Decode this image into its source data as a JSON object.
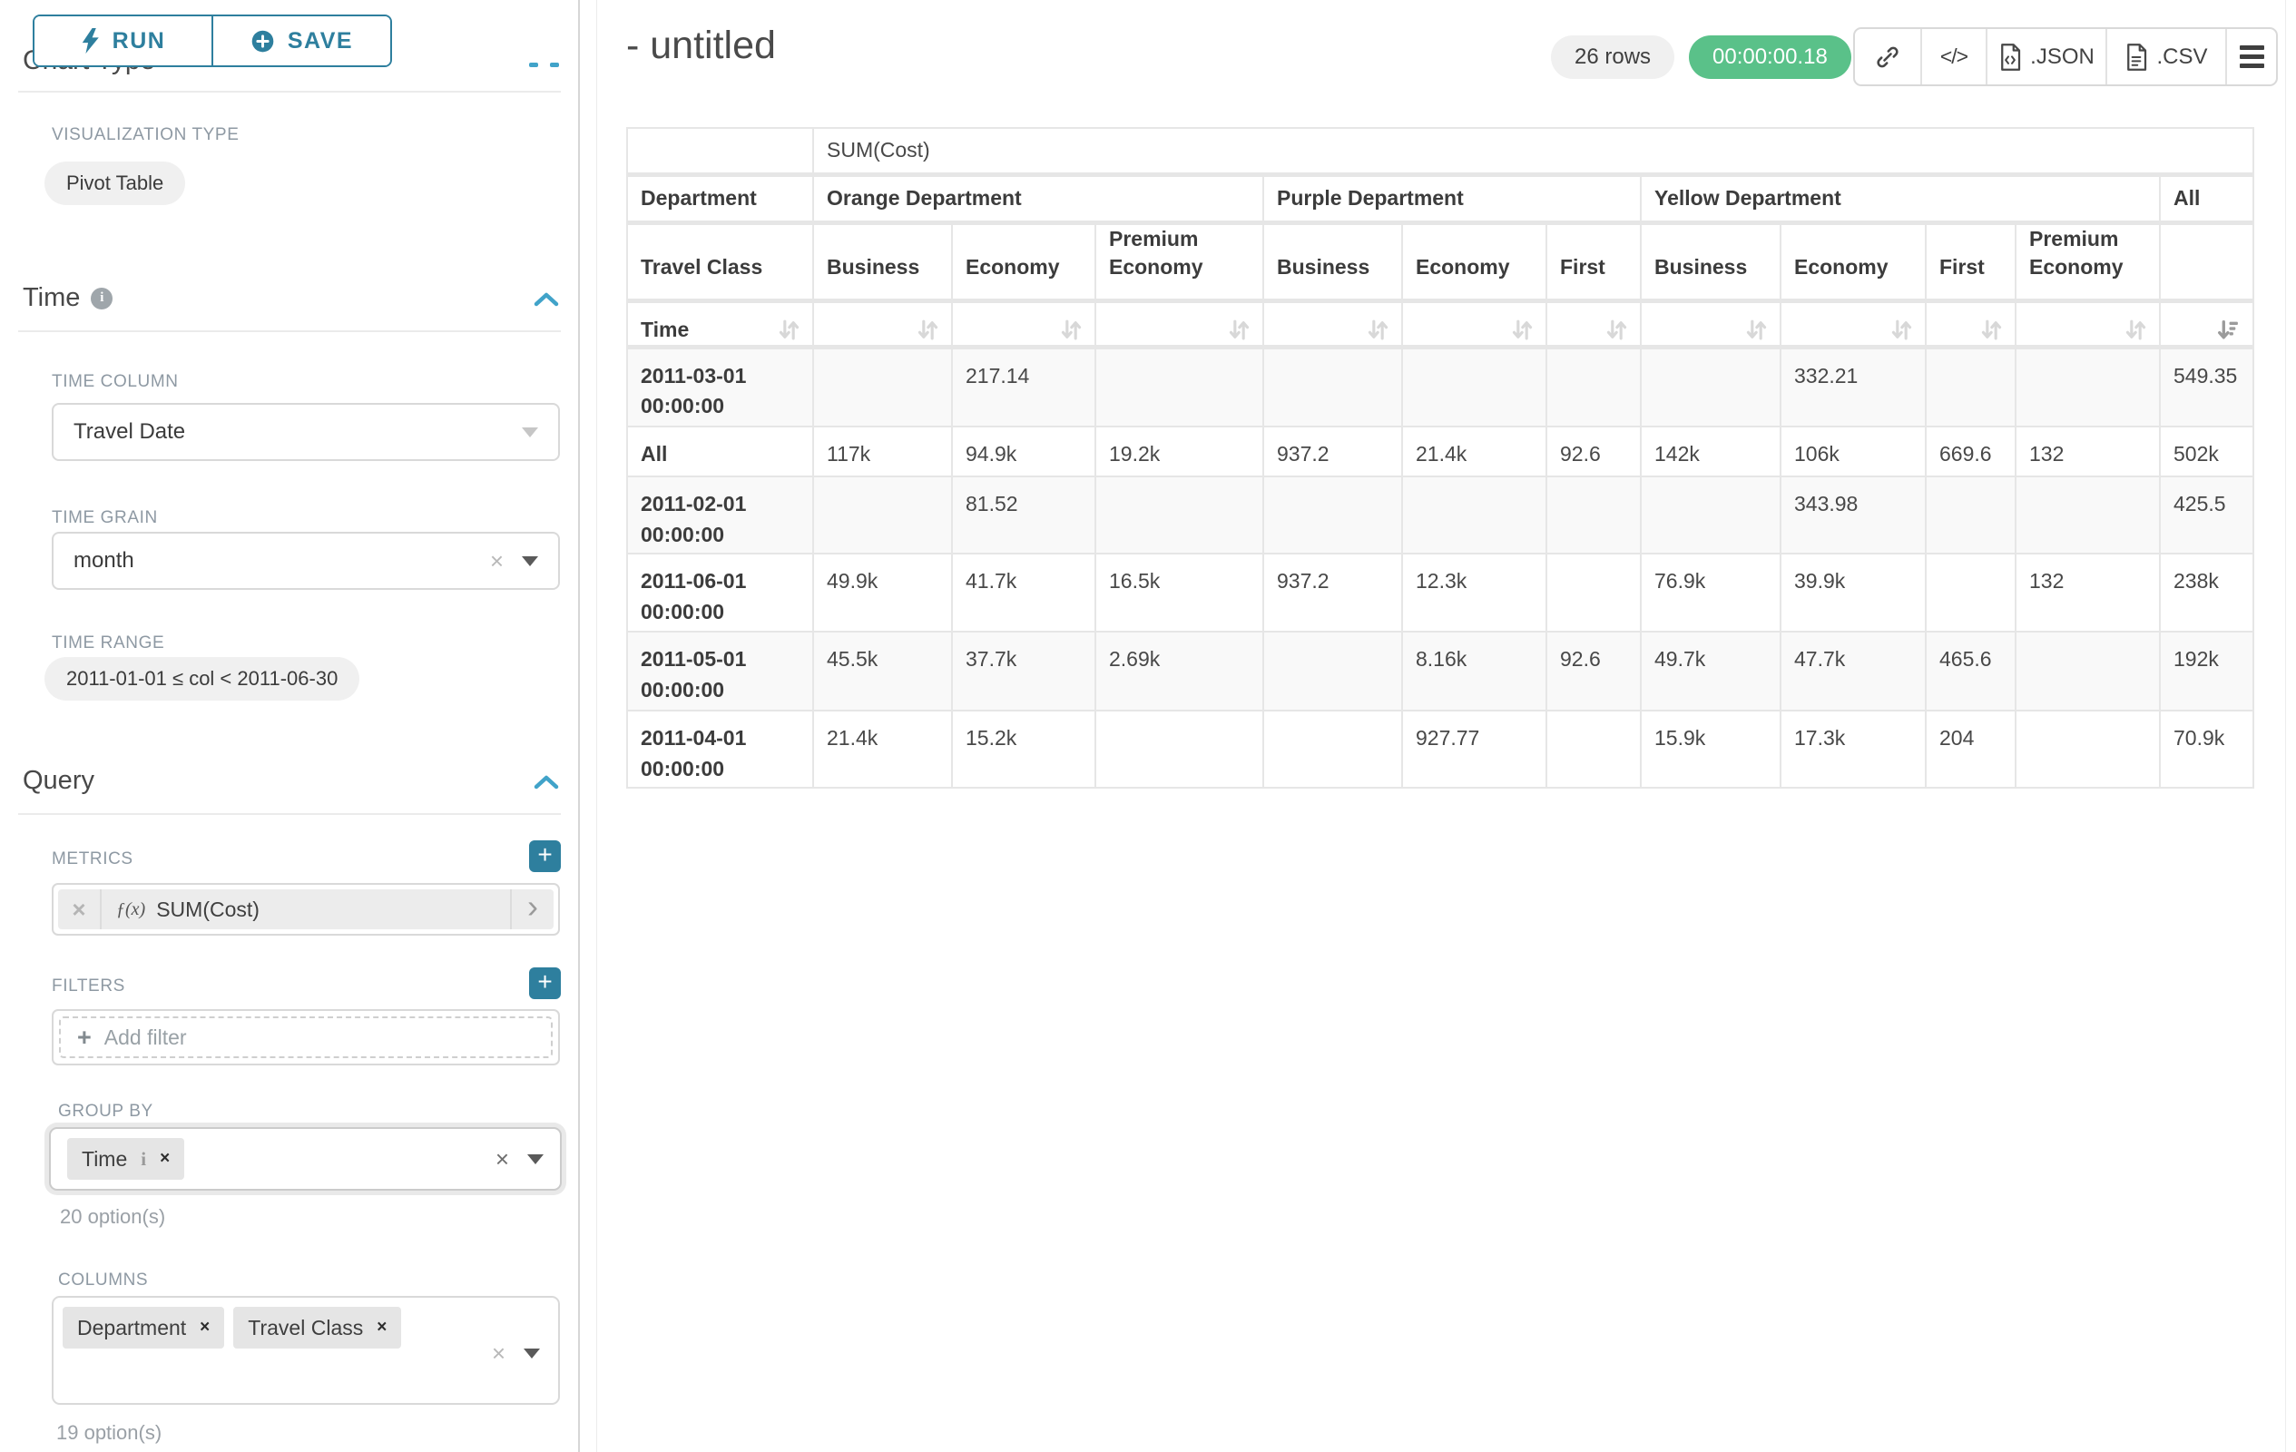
{
  "icons": {
    "close": "×",
    "plus": "+",
    "chevron_right": "›",
    "info": "i",
    "code": "</>"
  },
  "colors": {
    "primary": "#2E7F9E",
    "accent": "#41A3C9",
    "success": "#5AC189",
    "pill_bg": "#f0f0f0",
    "label_gray": "#8E99A3",
    "table_border": "#e6e6e6"
  },
  "sidebar": {
    "run_label": "RUN",
    "save_label": "SAVE",
    "chart_type_heading": "Chart Type",
    "viz_type_label": "VISUALIZATION TYPE",
    "viz_type_value": "Pivot Table",
    "time_section": "Time",
    "time_column_label": "TIME COLUMN",
    "time_column_value": "Travel Date",
    "time_grain_label": "TIME GRAIN",
    "time_grain_value": "month",
    "time_range_label": "TIME RANGE",
    "time_range_value": "2011-01-01 ≤ col < 2011-06-30",
    "query_section": "Query",
    "metrics_label": "METRICS",
    "metric_fx": "ƒ(x)",
    "metric_value": "SUM(Cost)",
    "filters_label": "FILTERS",
    "add_filter_placeholder": "Add filter",
    "group_by_label": "GROUP BY",
    "group_by_values": [
      "Time"
    ],
    "group_by_options_hint": "20 option(s)",
    "columns_label": "COLUMNS",
    "columns_values": [
      "Department",
      "Travel Class"
    ],
    "columns_options_hint": "19 option(s)"
  },
  "header": {
    "title": "- untitled",
    "row_count_badge": "26 rows",
    "timer_badge": "00:00:00.18",
    "json_label": ".JSON",
    "csv_label": ".CSV"
  },
  "pivot": {
    "metric_header": "SUM(Cost)",
    "row_group_label": "Department",
    "row_subgroup_label": "Travel Class",
    "sort_row_label": "Time",
    "column_groups": [
      {
        "label": "Orange Department",
        "columns": [
          "Business",
          "Economy",
          "Premium Economy"
        ]
      },
      {
        "label": "Purple Department",
        "columns": [
          "Business",
          "Economy",
          "First"
        ]
      },
      {
        "label": "Yellow Department",
        "columns": [
          "Business",
          "Economy",
          "First",
          "Premium Economy"
        ]
      },
      {
        "label": "All",
        "columns": [
          ""
        ]
      }
    ],
    "rows": [
      {
        "label": "2011-03-01 00:00:00",
        "values": [
          "",
          "217.14",
          "",
          "",
          "",
          "",
          "",
          "332.21",
          "",
          "",
          "549.35"
        ]
      },
      {
        "label": "All",
        "values": [
          "117k",
          "94.9k",
          "19.2k",
          "937.2",
          "21.4k",
          "92.6",
          "142k",
          "106k",
          "669.6",
          "132",
          "502k"
        ]
      },
      {
        "label": "2011-02-01 00:00:00",
        "values": [
          "",
          "81.52",
          "",
          "",
          "",
          "",
          "",
          "343.98",
          "",
          "",
          "425.5"
        ]
      },
      {
        "label": "2011-06-01 00:00:00",
        "values": [
          "49.9k",
          "41.7k",
          "16.5k",
          "937.2",
          "12.3k",
          "",
          "76.9k",
          "39.9k",
          "",
          "132",
          "238k"
        ]
      },
      {
        "label": "2011-05-01 00:00:00",
        "values": [
          "45.5k",
          "37.7k",
          "2.69k",
          "",
          "8.16k",
          "92.6",
          "49.7k",
          "47.7k",
          "465.6",
          "",
          "192k"
        ]
      },
      {
        "label": "2011-04-01 00:00:00",
        "values": [
          "21.4k",
          "15.2k",
          "",
          "",
          "927.77",
          "",
          "15.9k",
          "17.3k",
          "204",
          "",
          "70.9k"
        ]
      }
    ]
  }
}
